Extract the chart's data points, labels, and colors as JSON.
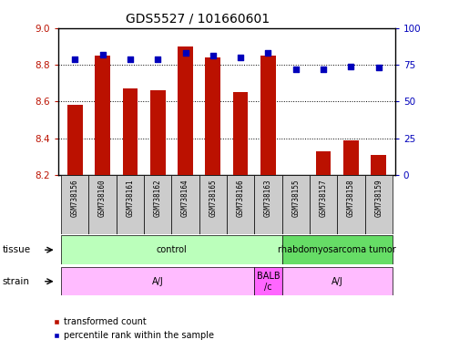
{
  "title": "GDS5527 / 101660601",
  "samples": [
    "GSM738156",
    "GSM738160",
    "GSM738161",
    "GSM738162",
    "GSM738164",
    "GSM738165",
    "GSM738166",
    "GSM738163",
    "GSM738155",
    "GSM738157",
    "GSM738158",
    "GSM738159"
  ],
  "red_values": [
    8.58,
    8.85,
    8.67,
    8.66,
    8.9,
    8.84,
    8.65,
    8.85,
    8.2,
    8.33,
    8.39,
    8.31
  ],
  "blue_values": [
    79,
    82,
    79,
    79,
    83,
    81,
    80,
    83,
    72,
    72,
    74,
    73
  ],
  "ylim_left": [
    8.2,
    9.0
  ],
  "ylim_right": [
    0,
    100
  ],
  "yticks_left": [
    8.2,
    8.4,
    8.6,
    8.8,
    9.0
  ],
  "yticks_right": [
    0,
    25,
    50,
    75,
    100
  ],
  "red_color": "#bb1100",
  "blue_color": "#0000bb",
  "tissue_groups": [
    {
      "label": "control",
      "start": 0,
      "end": 8,
      "color": "#bbffbb"
    },
    {
      "label": "rhabdomyosarcoma tumor",
      "start": 8,
      "end": 12,
      "color": "#66dd66"
    }
  ],
  "strain_groups": [
    {
      "label": "A/J",
      "start": 0,
      "end": 7,
      "color": "#ffbbff"
    },
    {
      "label": "BALB\n/c",
      "start": 7,
      "end": 8,
      "color": "#ff66ff"
    },
    {
      "label": "A/J",
      "start": 8,
      "end": 12,
      "color": "#ffbbff"
    }
  ],
  "legend_red": "transformed count",
  "legend_blue": "percentile rank within the sample",
  "bar_width": 0.55,
  "title_fontsize": 10
}
